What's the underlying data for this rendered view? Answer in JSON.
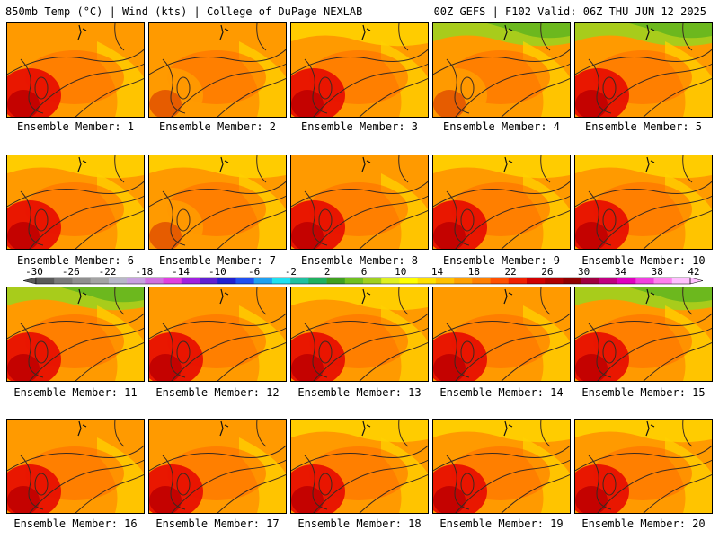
{
  "header": {
    "left": "850mb Temp (°C) | Wind (kts) | College of DuPage NEXLAB",
    "right": "00Z GEFS | F102 Valid: 06Z THU JUN 12 2025"
  },
  "label_prefix": "Ensemble Member: ",
  "members": [
    {
      "label": "Ensemble Member: 1",
      "north": "orange",
      "south": "red"
    },
    {
      "label": "Ensemble Member: 2",
      "north": "orange",
      "south": "orange"
    },
    {
      "label": "Ensemble Member: 3",
      "north": "yellow",
      "south": "red"
    },
    {
      "label": "Ensemble Member: 4",
      "north": "green",
      "south": "orange"
    },
    {
      "label": "Ensemble Member: 5",
      "north": "green",
      "south": "red"
    },
    {
      "label": "Ensemble Member: 6",
      "north": "yellow",
      "south": "red"
    },
    {
      "label": "Ensemble Member: 7",
      "north": "yellow",
      "south": "orange"
    },
    {
      "label": "Ensemble Member: 8",
      "north": "orange",
      "south": "red"
    },
    {
      "label": "Ensemble Member: 9",
      "north": "yellow",
      "south": "red"
    },
    {
      "label": "Ensemble Member: 10",
      "north": "yellow",
      "south": "red"
    },
    {
      "label": "Ensemble Member: 11",
      "north": "green",
      "south": "red"
    },
    {
      "label": "Ensemble Member: 12",
      "north": "orange",
      "south": "red"
    },
    {
      "label": "Ensemble Member: 13",
      "north": "yellow",
      "south": "red"
    },
    {
      "label": "Ensemble Member: 14",
      "north": "orange",
      "south": "red"
    },
    {
      "label": "Ensemble Member: 15",
      "north": "green",
      "south": "red"
    },
    {
      "label": "Ensemble Member: 16",
      "north": "orange",
      "south": "red"
    },
    {
      "label": "Ensemble Member: 17",
      "north": "orange",
      "south": "red"
    },
    {
      "label": "Ensemble Member: 18",
      "north": "yellow",
      "south": "red"
    },
    {
      "label": "Ensemble Member: 19",
      "north": "yellow",
      "south": "red"
    },
    {
      "label": "Ensemble Member: 20",
      "north": "yellow",
      "south": "red"
    }
  ],
  "colorbar": {
    "labels": [
      "-30",
      "-26",
      "-22",
      "-18",
      "-14",
      "-10",
      "-6",
      "-2",
      "2",
      "6",
      "10",
      "14",
      "18",
      "22",
      "26",
      "30",
      "34",
      "38",
      "42"
    ],
    "colors": [
      "#5a5a5a",
      "#7a7a7a",
      "#8f8f8f",
      "#a3a3a3",
      "#b8b8c8",
      "#c8a0e0",
      "#d070e0",
      "#e040e0",
      "#a020e0",
      "#6020d0",
      "#2020d0",
      "#2050f0",
      "#20a0f0",
      "#20e0f0",
      "#20c0a0",
      "#20b060",
      "#40a020",
      "#70c020",
      "#a0d020",
      "#e0f020",
      "#ffff00",
      "#ffe000",
      "#ffc000",
      "#ffa000",
      "#ff8000",
      "#ff5000",
      "#f02000",
      "#d00000",
      "#b00000",
      "#900000",
      "#a00040",
      "#c00080",
      "#e000c0",
      "#f040e0",
      "#ff80f0",
      "#ffc0ff"
    ]
  },
  "palette": {
    "yellow": "#ffd200",
    "orange": "#ff9a00",
    "deep_orange": "#ff6a00",
    "red": "#e81000",
    "dark_red": "#c00000",
    "green": "#9ed21e"
  }
}
